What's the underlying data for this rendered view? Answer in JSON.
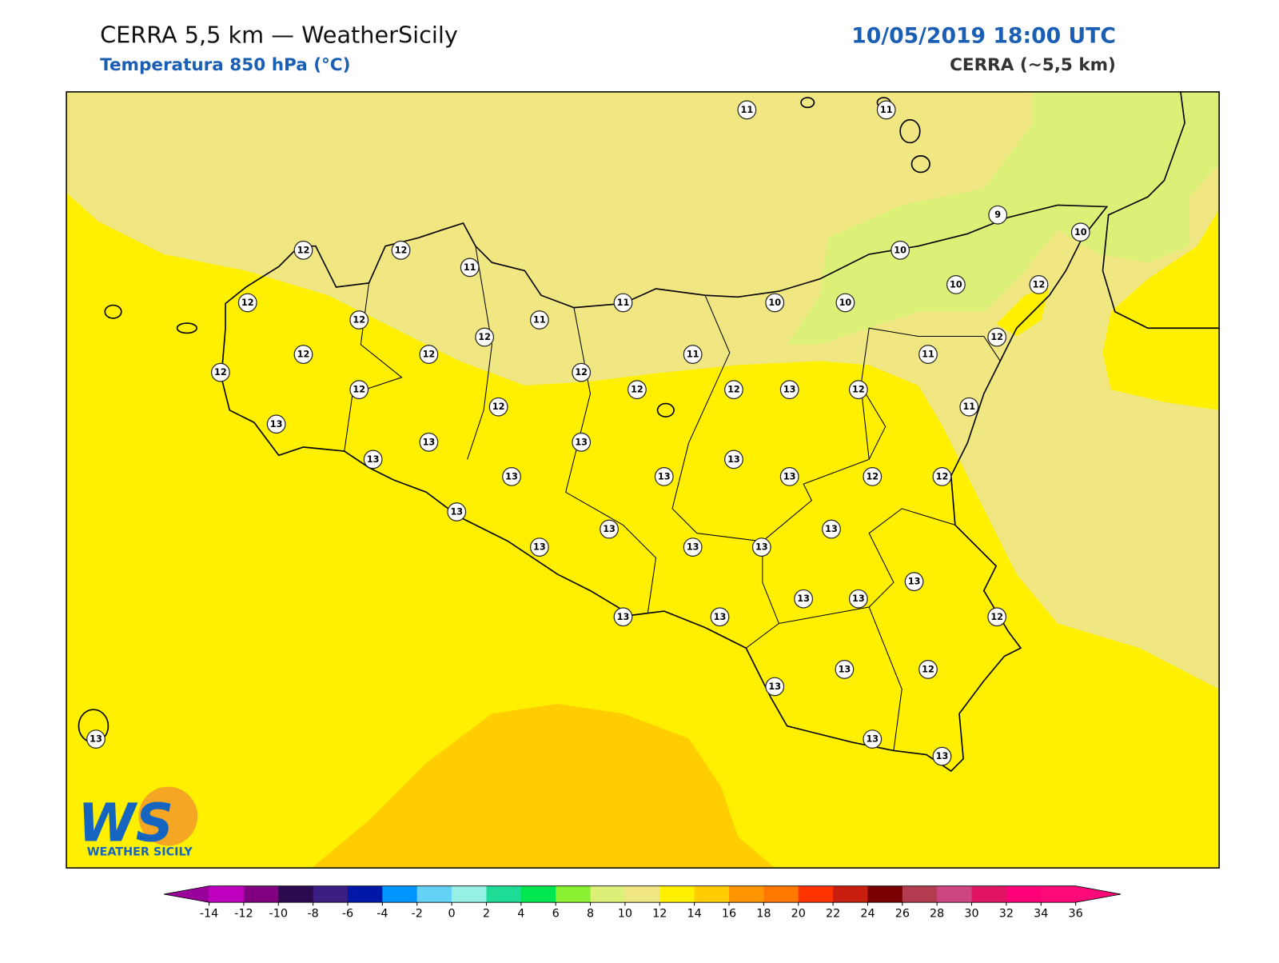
{
  "header": {
    "title": "CERRA 5,5 km — WeatherSicily",
    "subtitle": "Temperatura 850 hPa (°C)",
    "datetime": "10/05/2019 18:00 UTC",
    "model": "CERRA (~5,5 km)"
  },
  "logo": {
    "letters": "WS",
    "name": "WEATHER SICILY"
  },
  "stations": [
    11,
    11,
    9,
    10,
    10,
    12,
    12,
    11,
    12,
    11,
    10,
    10,
    10,
    12,
    12,
    11,
    12,
    12,
    12,
    12,
    11,
    11,
    12,
    12,
    12,
    12,
    12,
    13,
    12,
    11,
    12,
    13,
    13,
    13,
    13,
    13,
    13,
    13,
    13,
    12,
    12,
    13,
    13,
    13,
    13,
    13,
    13,
    13,
    13,
    13,
    13,
    13,
    12,
    13,
    13,
    12,
    13,
    13,
    13
  ],
  "colorbar": {
    "ticks": [
      -14,
      -12,
      -10,
      -8,
      -6,
      -4,
      -2,
      0,
      2,
      4,
      6,
      8,
      10,
      12,
      14,
      16,
      18,
      20,
      22,
      24,
      26,
      28,
      30,
      32,
      34,
      36
    ],
    "colors": [
      "#c000c0",
      "#800080",
      "#2d0a50",
      "#3a1e82",
      "#0018a8",
      "#0096ff",
      "#64d2f5",
      "#96f0e6",
      "#1edc96",
      "#00e650",
      "#8cf032",
      "#dcf078",
      "#f0e682",
      "#fff000",
      "#ffcd00",
      "#ff9600",
      "#ff7800",
      "#ff3200",
      "#c81e0f",
      "#780000",
      "#b43c50",
      "#cd4682",
      "#e11464",
      "#ff0078",
      "#ff0a78"
    ],
    "under_color": "#9a009a",
    "over_color": "#ff0a78"
  }
}
